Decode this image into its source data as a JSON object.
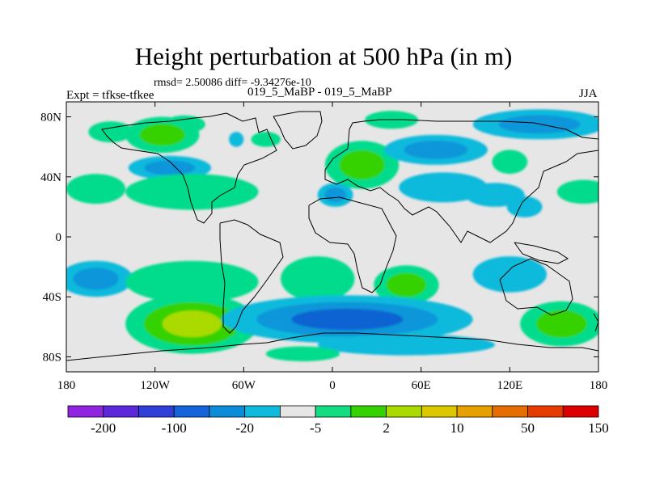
{
  "title": "Height perturbation at 500 hPa (in m)",
  "stats": "rmsd= 2.50086 diff= -9.34276e-10",
  "experiment": "Expt = tfkse-tfkee",
  "runs": "019_5_MaBP - 019_5_MaBP",
  "season": "JJA",
  "map": {
    "background_color": "#e6e6e6",
    "lat_ticks": [
      {
        "label": "80N",
        "lat": 80
      },
      {
        "label": "40N",
        "lat": 40
      },
      {
        "label": "0",
        "lat": 0
      },
      {
        "label": "40S",
        "lat": -40
      },
      {
        "label": "80S",
        "lat": -80
      }
    ],
    "lon_ticks": [
      {
        "label": "180",
        "lon": -180
      },
      {
        "label": "120W",
        "lon": -120
      },
      {
        "label": "60W",
        "lon": -60
      },
      {
        "label": "0",
        "lon": 0
      },
      {
        "label": "60E",
        "lon": 60
      },
      {
        "label": "120E",
        "lon": 120
      },
      {
        "label": "180",
        "lon": 180
      }
    ],
    "anomalies": [
      {
        "name": "arctic-canada-pos",
        "lon": -100,
        "lat": 75,
        "rx": 14,
        "ry": 6,
        "levels": [
          "#00dc8c"
        ]
      },
      {
        "name": "alaska-pos",
        "lon": -150,
        "lat": 70,
        "rx": 15,
        "ry": 7,
        "levels": [
          "#00dc8c"
        ]
      },
      {
        "name": "canada-pos",
        "lon": -115,
        "lat": 68,
        "rx": 25,
        "ry": 12,
        "levels": [
          "#00dc8c",
          "#35d200"
        ]
      },
      {
        "name": "hudson-neg",
        "lon": -65,
        "lat": 65,
        "rx": 5,
        "ry": 5,
        "levels": [
          "#0fbadc"
        ]
      },
      {
        "name": "n-atlantic-pos",
        "lon": -45,
        "lat": 65,
        "rx": 10,
        "ry": 5,
        "levels": [
          "#00dc8c"
        ]
      },
      {
        "name": "n-america-neg",
        "lon": -110,
        "lat": 46,
        "rx": 28,
        "ry": 8,
        "levels": [
          "#0fbadc",
          "#0996d9"
        ]
      },
      {
        "name": "n-pacific-pos",
        "lon": -160,
        "lat": 32,
        "rx": 20,
        "ry": 10,
        "levels": [
          "#00dc8c"
        ]
      },
      {
        "name": "n-america-south-pos",
        "lon": -95,
        "lat": 30,
        "rx": 45,
        "ry": 12,
        "levels": [
          "#00dc8c"
        ]
      },
      {
        "name": "europe-pos",
        "lon": 20,
        "lat": 48,
        "rx": 25,
        "ry": 16,
        "levels": [
          "#00dc8c",
          "#35d200"
        ]
      },
      {
        "name": "med-neg",
        "lon": 2,
        "lat": 28,
        "rx": 12,
        "ry": 8,
        "levels": [
          "#0fbadc",
          "#0996d9"
        ]
      },
      {
        "name": "siberia-neg",
        "lon": 70,
        "lat": 58,
        "rx": 35,
        "ry": 10,
        "levels": [
          "#0fbadc",
          "#0996d9"
        ]
      },
      {
        "name": "arctic-east-pos",
        "lon": 40,
        "lat": 78,
        "rx": 18,
        "ry": 6,
        "levels": [
          "#00dc8c"
        ]
      },
      {
        "name": "arctic-siberia-neg",
        "lon": 140,
        "lat": 75,
        "rx": 45,
        "ry": 10,
        "levels": [
          "#0fbadc",
          "#0996d9"
        ]
      },
      {
        "name": "asia-neg",
        "lon": 75,
        "lat": 33,
        "rx": 30,
        "ry": 10,
        "levels": [
          "#0fbadc"
        ]
      },
      {
        "name": "china-neg",
        "lon": 110,
        "lat": 28,
        "rx": 20,
        "ry": 8,
        "levels": [
          "#0fbadc"
        ]
      },
      {
        "name": "w-pacific-neg",
        "lon": 130,
        "lat": 20,
        "rx": 12,
        "ry": 7,
        "levels": [
          "#0fbadc"
        ]
      },
      {
        "name": "n-pacific-east-pos",
        "lon": 170,
        "lat": 30,
        "rx": 18,
        "ry": 8,
        "levels": [
          "#00dc8c"
        ]
      },
      {
        "name": "east-asia-pos",
        "lon": 120,
        "lat": 50,
        "rx": 12,
        "ry": 8,
        "levels": [
          "#00dc8c"
        ]
      },
      {
        "name": "s-pacific-neg",
        "lon": -160,
        "lat": -28,
        "rx": 25,
        "ry": 12,
        "levels": [
          "#0fbadc",
          "#0996d9"
        ]
      },
      {
        "name": "s-america-west-pos",
        "lon": -95,
        "lat": -30,
        "rx": 45,
        "ry": 14,
        "levels": [
          "#00dc8c"
        ]
      },
      {
        "name": "s-atlantic-pos",
        "lon": -10,
        "lat": -28,
        "rx": 25,
        "ry": 15,
        "levels": [
          "#00dc8c"
        ]
      },
      {
        "name": "s-africa-pos",
        "lon": 50,
        "lat": -32,
        "rx": 22,
        "ry": 13,
        "levels": [
          "#00dc8c",
          "#35d200"
        ]
      },
      {
        "name": "s-indian-east-neg",
        "lon": 120,
        "lat": -25,
        "rx": 25,
        "ry": 12,
        "levels": [
          "#0fbadc"
        ]
      },
      {
        "name": "s-pacific-pos",
        "lon": -95,
        "lat": -58,
        "rx": 45,
        "ry": 20,
        "levels": [
          "#00dc8c",
          "#35d200",
          "#aada00"
        ]
      },
      {
        "name": "southern-ocean-neg",
        "lon": 10,
        "lat": -55,
        "rx": 85,
        "ry": 16,
        "levels": [
          "#0fbadc",
          "#0996d9",
          "#0a64d2"
        ]
      },
      {
        "name": "antarctic-neg",
        "lon": 50,
        "lat": -72,
        "rx": 60,
        "ry": 7,
        "levels": [
          "#0fbadc"
        ]
      },
      {
        "name": "s-pacific-east-pos",
        "lon": 155,
        "lat": -58,
        "rx": 28,
        "ry": 15,
        "levels": [
          "#00dc8c",
          "#35d200"
        ]
      },
      {
        "name": "antarctic-pos",
        "lon": -20,
        "lat": -78,
        "rx": 25,
        "ry": 5,
        "levels": [
          "#00dc8c"
        ]
      }
    ]
  },
  "colorbar": {
    "colors": [
      "#8f25e0",
      "#5b28dc",
      "#2f3fd8",
      "#1564dc",
      "#0a8cd8",
      "#0fbadc",
      "#e6e6e6",
      "#14dc82",
      "#35d200",
      "#aada00",
      "#dcc800",
      "#e6a000",
      "#e66e00",
      "#e63c00",
      "#dc0000"
    ],
    "labels": [
      "-200",
      "-100",
      "-20",
      "-5",
      "2",
      "10",
      "50",
      "150"
    ]
  }
}
